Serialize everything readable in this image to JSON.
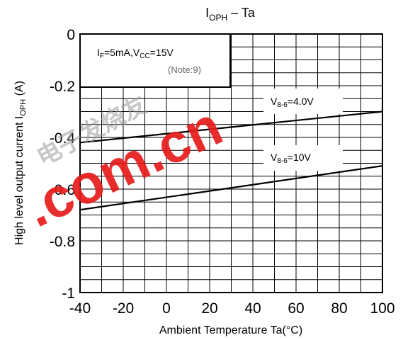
{
  "chart_data": {
    "type": "line",
    "title_main": "I",
    "title_sub": "OPH",
    "title_rest": " – Ta",
    "xlabel": "Ambient Temperature Ta(°C)",
    "ylabel_main": "High level output current   I",
    "ylabel_sub": "OPH",
    "ylabel_unit": "(A)",
    "xlim": [
      -40,
      100
    ],
    "ylim": [
      -1,
      0
    ],
    "x_ticks": [
      -40,
      -20,
      0,
      20,
      40,
      60,
      80,
      100
    ],
    "x_tick_labels": [
      "-40",
      "-20",
      "0",
      "20",
      "40",
      "60",
      "80",
      "100"
    ],
    "y_ticks": [
      0,
      -0.2,
      -0.4,
      -0.6,
      -0.8,
      -1
    ],
    "y_tick_labels": [
      "0",
      "-0.2",
      "-0.4",
      "-0.6",
      "-0.8",
      "-1"
    ],
    "grid": true,
    "grid_x_step": 10,
    "grid_y_step": 0.05,
    "condition": {
      "line1_a": "I",
      "line1_a_sub": "F",
      "line1_b": "=5mA,V",
      "line1_b_sub": "CC",
      "line1_c": "=15V",
      "note": "(Note:9)"
    },
    "series": [
      {
        "label_main": "V",
        "label_sub": "8-6",
        "label_rest": "=4.0V",
        "x": [
          -40,
          100
        ],
        "y": [
          -0.42,
          -0.3
        ]
      },
      {
        "label_main": "V",
        "label_sub": "8-6",
        "label_rest": "=10V",
        "x": [
          -40,
          100
        ],
        "y": [
          -0.68,
          -0.51
        ]
      }
    ],
    "watermark": {
      "latin": ".com.cn",
      "cjk": "电子发烧友"
    }
  }
}
